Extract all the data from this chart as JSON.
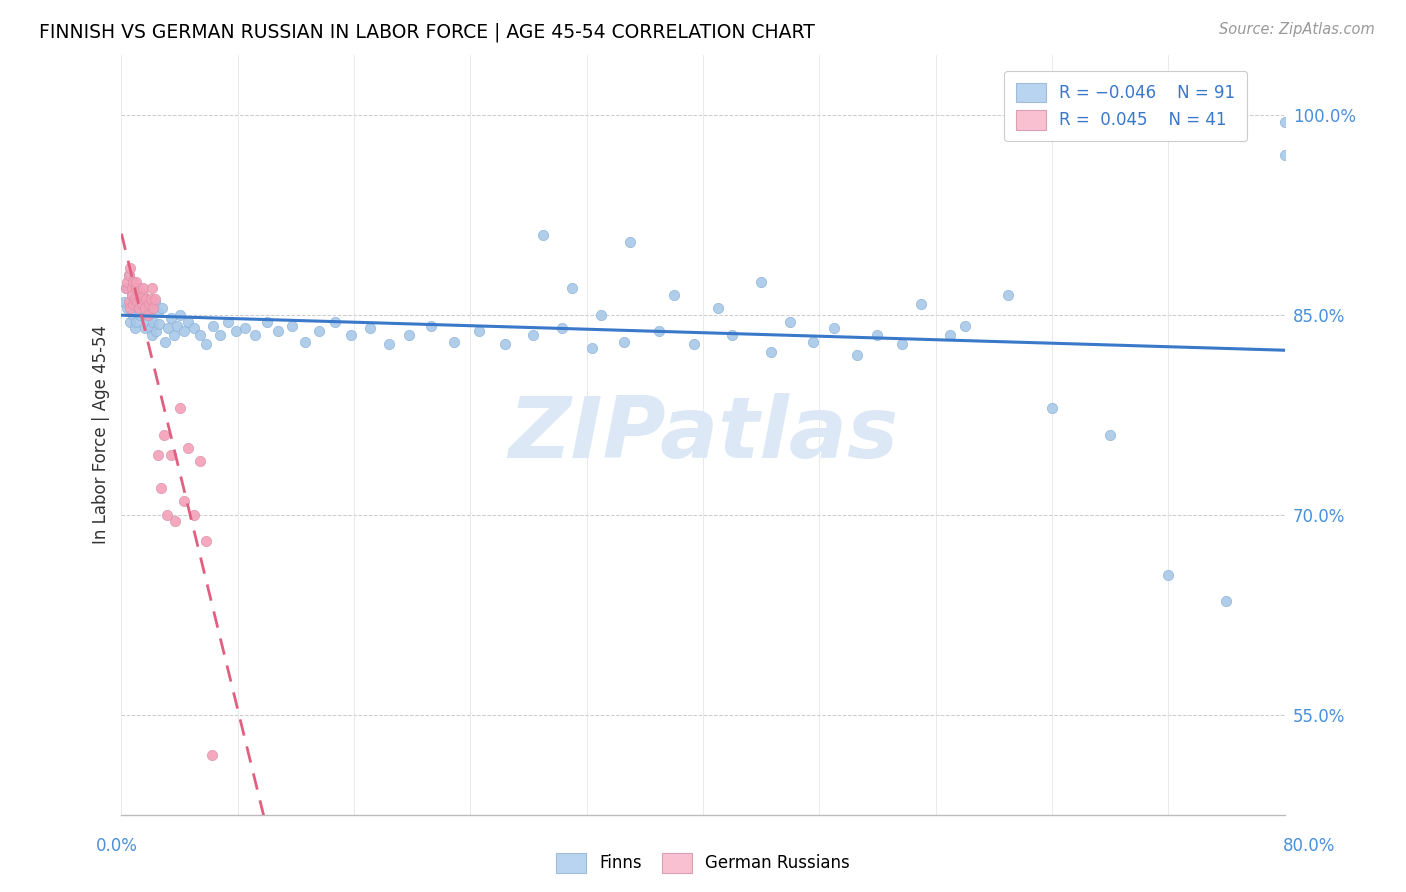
{
  "title": "FINNISH VS GERMAN RUSSIAN IN LABOR FORCE | AGE 45-54 CORRELATION CHART",
  "source": "Source: ZipAtlas.com",
  "ylabel": "In Labor Force | Age 45-54",
  "right_yticks": [
    55.0,
    70.0,
    85.0,
    100.0
  ],
  "xmin": 0.0,
  "xmax": 0.8,
  "ymin": 0.475,
  "ymax": 1.045,
  "finn_R": -0.046,
  "finn_N": 91,
  "gr_R": 0.045,
  "gr_N": 41,
  "finn_color": "#a8c8e8",
  "gr_color": "#f4a0b8",
  "finn_line_color": "#3a78c9",
  "gr_line_color": "#e06080",
  "legend_finn_box": "#b8d4f0",
  "legend_gr_box": "#f8c0d0",
  "watermark_color": "#dce8f5",
  "finn_x": [
    0.002,
    0.003,
    0.004,
    0.005,
    0.006,
    0.007,
    0.008,
    0.008,
    0.009,
    0.01,
    0.01,
    0.011,
    0.012,
    0.012,
    0.013,
    0.014,
    0.015,
    0.016,
    0.017,
    0.018,
    0.019,
    0.02,
    0.021,
    0.022,
    0.023,
    0.024,
    0.025,
    0.026,
    0.028,
    0.03,
    0.032,
    0.034,
    0.036,
    0.038,
    0.04,
    0.043,
    0.046,
    0.05,
    0.054,
    0.058,
    0.063,
    0.068,
    0.073,
    0.079,
    0.085,
    0.092,
    0.1,
    0.108,
    0.117,
    0.126,
    0.136,
    0.147,
    0.158,
    0.171,
    0.184,
    0.198,
    0.213,
    0.229,
    0.246,
    0.264,
    0.283,
    0.303,
    0.324,
    0.346,
    0.37,
    0.394,
    0.42,
    0.447,
    0.476,
    0.506,
    0.537,
    0.57,
    0.29,
    0.31,
    0.33,
    0.35,
    0.38,
    0.41,
    0.44,
    0.46,
    0.49,
    0.52,
    0.55,
    0.58,
    0.61,
    0.64,
    0.68,
    0.72,
    0.76,
    0.8,
    0.8
  ],
  "finn_y": [
    0.86,
    0.87,
    0.855,
    0.88,
    0.845,
    0.865,
    0.85,
    0.875,
    0.84,
    0.86,
    0.845,
    0.855,
    0.865,
    0.87,
    0.85,
    0.86,
    0.855,
    0.84,
    0.85,
    0.845,
    0.855,
    0.84,
    0.835,
    0.845,
    0.86,
    0.838,
    0.852,
    0.843,
    0.855,
    0.83,
    0.84,
    0.848,
    0.835,
    0.842,
    0.85,
    0.838,
    0.845,
    0.84,
    0.835,
    0.828,
    0.842,
    0.835,
    0.845,
    0.838,
    0.84,
    0.835,
    0.845,
    0.838,
    0.842,
    0.83,
    0.838,
    0.845,
    0.835,
    0.84,
    0.828,
    0.835,
    0.842,
    0.83,
    0.838,
    0.828,
    0.835,
    0.84,
    0.825,
    0.83,
    0.838,
    0.828,
    0.835,
    0.822,
    0.83,
    0.82,
    0.828,
    0.835,
    0.91,
    0.87,
    0.85,
    0.905,
    0.865,
    0.855,
    0.875,
    0.845,
    0.84,
    0.835,
    0.858,
    0.842,
    0.865,
    0.78,
    0.76,
    0.655,
    0.635,
    0.995,
    0.97
  ],
  "gr_x": [
    0.003,
    0.004,
    0.005,
    0.005,
    0.006,
    0.006,
    0.007,
    0.007,
    0.008,
    0.008,
    0.009,
    0.01,
    0.01,
    0.011,
    0.012,
    0.012,
    0.013,
    0.014,
    0.015,
    0.015,
    0.016,
    0.017,
    0.018,
    0.019,
    0.02,
    0.021,
    0.022,
    0.023,
    0.025,
    0.027,
    0.029,
    0.031,
    0.034,
    0.037,
    0.04,
    0.043,
    0.046,
    0.05,
    0.054,
    0.058,
    0.062
  ],
  "gr_y": [
    0.87,
    0.875,
    0.88,
    0.86,
    0.885,
    0.855,
    0.87,
    0.865,
    0.858,
    0.875,
    0.862,
    0.87,
    0.875,
    0.86,
    0.855,
    0.868,
    0.862,
    0.858,
    0.865,
    0.87,
    0.855,
    0.862,
    0.85,
    0.858,
    0.862,
    0.87,
    0.855,
    0.862,
    0.745,
    0.72,
    0.76,
    0.7,
    0.745,
    0.695,
    0.78,
    0.71,
    0.75,
    0.7,
    0.74,
    0.68,
    0.52
  ]
}
